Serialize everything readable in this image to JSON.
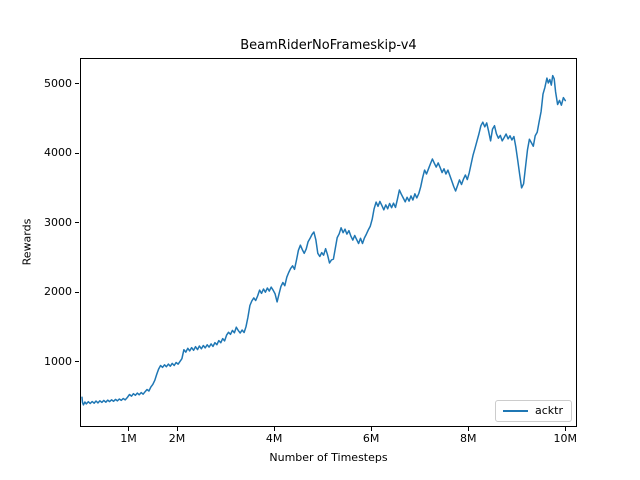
{
  "colors": {
    "line": "#1f77b4",
    "background": "#ffffff",
    "text": "#000000",
    "spine": "#000000",
    "legend_border": "#cccccc"
  },
  "chart_data": {
    "type": "line",
    "title": "BeamRiderNoFrameskip-v4",
    "xlabel": "Number of Timesteps",
    "ylabel": "Rewards",
    "grid": false,
    "xlim_millions": [
      0,
      10.2
    ],
    "ylim": [
      87,
      5367
    ],
    "xticks": [
      {
        "value_millions": 1,
        "label": "1M"
      },
      {
        "value_millions": 2,
        "label": "2M"
      },
      {
        "value_millions": 4,
        "label": "4M"
      },
      {
        "value_millions": 6,
        "label": "6M"
      },
      {
        "value_millions": 8,
        "label": "8M"
      },
      {
        "value_millions": 10,
        "label": "10M"
      }
    ],
    "yticks": [
      {
        "value": 1000,
        "label": "1000"
      },
      {
        "value": 2000,
        "label": "2000"
      },
      {
        "value": 3000,
        "label": "3000"
      },
      {
        "value": 4000,
        "label": "4000"
      },
      {
        "value": 5000,
        "label": "5000"
      }
    ],
    "legend": {
      "position": "lower right",
      "entries": [
        {
          "label": "acktr",
          "color": "#1f77b4"
        }
      ]
    },
    "series": [
      {
        "name": "acktr",
        "color": "#1f77b4",
        "x_unit": "millions_of_timesteps",
        "points": [
          [
            0.02,
            500
          ],
          [
            0.03,
            425
          ],
          [
            0.05,
            390
          ],
          [
            0.08,
            432
          ],
          [
            0.11,
            405
          ],
          [
            0.15,
            436
          ],
          [
            0.19,
            410
          ],
          [
            0.23,
            440
          ],
          [
            0.27,
            415
          ],
          [
            0.31,
            446
          ],
          [
            0.35,
            420
          ],
          [
            0.39,
            450
          ],
          [
            0.43,
            426
          ],
          [
            0.47,
            455
          ],
          [
            0.51,
            430
          ],
          [
            0.55,
            460
          ],
          [
            0.59,
            438
          ],
          [
            0.63,
            464
          ],
          [
            0.67,
            442
          ],
          [
            0.71,
            470
          ],
          [
            0.75,
            448
          ],
          [
            0.79,
            476
          ],
          [
            0.83,
            455
          ],
          [
            0.87,
            482
          ],
          [
            0.91,
            462
          ],
          [
            0.95,
            492
          ],
          [
            1,
            540
          ],
          [
            1.04,
            516
          ],
          [
            1.08,
            552
          ],
          [
            1.12,
            528
          ],
          [
            1.16,
            560
          ],
          [
            1.2,
            536
          ],
          [
            1.24,
            568
          ],
          [
            1.28,
            545
          ],
          [
            1.32,
            580
          ],
          [
            1.36,
            612
          ],
          [
            1.4,
            590
          ],
          [
            1.44,
            650
          ],
          [
            1.48,
            685
          ],
          [
            1.52,
            745
          ],
          [
            1.56,
            830
          ],
          [
            1.6,
            905
          ],
          [
            1.64,
            958
          ],
          [
            1.68,
            930
          ],
          [
            1.72,
            968
          ],
          [
            1.76,
            940
          ],
          [
            1.8,
            978
          ],
          [
            1.84,
            948
          ],
          [
            1.88,
            988
          ],
          [
            1.92,
            958
          ],
          [
            1.96,
            1000
          ],
          [
            2,
            976
          ],
          [
            2.04,
            1016
          ],
          [
            2.08,
            1055
          ],
          [
            2.12,
            1185
          ],
          [
            2.16,
            1150
          ],
          [
            2.2,
            1205
          ],
          [
            2.24,
            1168
          ],
          [
            2.28,
            1215
          ],
          [
            2.32,
            1176
          ],
          [
            2.36,
            1228
          ],
          [
            2.4,
            1186
          ],
          [
            2.44,
            1238
          ],
          [
            2.48,
            1198
          ],
          [
            2.52,
            1245
          ],
          [
            2.56,
            1210
          ],
          [
            2.6,
            1255
          ],
          [
            2.64,
            1222
          ],
          [
            2.68,
            1268
          ],
          [
            2.72,
            1232
          ],
          [
            2.76,
            1285
          ],
          [
            2.8,
            1256
          ],
          [
            2.84,
            1315
          ],
          [
            2.88,
            1286
          ],
          [
            2.92,
            1345
          ],
          [
            2.96,
            1312
          ],
          [
            3,
            1395
          ],
          [
            3.04,
            1435
          ],
          [
            3.08,
            1406
          ],
          [
            3.12,
            1462
          ],
          [
            3.16,
            1428
          ],
          [
            3.2,
            1508
          ],
          [
            3.24,
            1462
          ],
          [
            3.28,
            1425
          ],
          [
            3.32,
            1468
          ],
          [
            3.36,
            1432
          ],
          [
            3.4,
            1515
          ],
          [
            3.44,
            1650
          ],
          [
            3.48,
            1820
          ],
          [
            3.52,
            1885
          ],
          [
            3.56,
            1930
          ],
          [
            3.6,
            1892
          ],
          [
            3.64,
            1958
          ],
          [
            3.68,
            2042
          ],
          [
            3.72,
            1995
          ],
          [
            3.76,
            2058
          ],
          [
            3.8,
            2012
          ],
          [
            3.84,
            2072
          ],
          [
            3.88,
            2028
          ],
          [
            3.92,
            2085
          ],
          [
            3.96,
            2040
          ],
          [
            4,
            1988
          ],
          [
            4.04,
            1872
          ],
          [
            4.08,
            1985
          ],
          [
            4.12,
            2092
          ],
          [
            4.16,
            2152
          ],
          [
            4.2,
            2105
          ],
          [
            4.24,
            2228
          ],
          [
            4.28,
            2295
          ],
          [
            4.32,
            2352
          ],
          [
            4.36,
            2392
          ],
          [
            4.4,
            2342
          ],
          [
            4.44,
            2475
          ],
          [
            4.48,
            2615
          ],
          [
            4.52,
            2688
          ],
          [
            4.56,
            2625
          ],
          [
            4.6,
            2572
          ],
          [
            4.64,
            2632
          ],
          [
            4.68,
            2738
          ],
          [
            4.72,
            2788
          ],
          [
            4.76,
            2842
          ],
          [
            4.8,
            2878
          ],
          [
            4.84,
            2762
          ],
          [
            4.88,
            2572
          ],
          [
            4.92,
            2525
          ],
          [
            4.96,
            2582
          ],
          [
            5,
            2545
          ],
          [
            5.04,
            2638
          ],
          [
            5.08,
            2552
          ],
          [
            5.12,
            2432
          ],
          [
            5.16,
            2475
          ],
          [
            5.2,
            2488
          ],
          [
            5.24,
            2642
          ],
          [
            5.28,
            2798
          ],
          [
            5.32,
            2852
          ],
          [
            5.36,
            2938
          ],
          [
            5.4,
            2868
          ],
          [
            5.44,
            2918
          ],
          [
            5.48,
            2848
          ],
          [
            5.52,
            2898
          ],
          [
            5.56,
            2822
          ],
          [
            5.6,
            2762
          ],
          [
            5.64,
            2828
          ],
          [
            5.68,
            2772
          ],
          [
            5.72,
            2712
          ],
          [
            5.76,
            2788
          ],
          [
            5.8,
            2712
          ],
          [
            5.84,
            2792
          ],
          [
            5.88,
            2848
          ],
          [
            5.92,
            2908
          ],
          [
            5.96,
            2958
          ],
          [
            6,
            3062
          ],
          [
            6.04,
            3212
          ],
          [
            6.08,
            3308
          ],
          [
            6.12,
            3248
          ],
          [
            6.16,
            3318
          ],
          [
            6.2,
            3258
          ],
          [
            6.24,
            3198
          ],
          [
            6.28,
            3268
          ],
          [
            6.32,
            3212
          ],
          [
            6.36,
            3288
          ],
          [
            6.4,
            3228
          ],
          [
            6.44,
            3292
          ],
          [
            6.48,
            3232
          ],
          [
            6.52,
            3348
          ],
          [
            6.56,
            3482
          ],
          [
            6.6,
            3422
          ],
          [
            6.64,
            3368
          ],
          [
            6.68,
            3312
          ],
          [
            6.72,
            3378
          ],
          [
            6.76,
            3322
          ],
          [
            6.8,
            3398
          ],
          [
            6.84,
            3338
          ],
          [
            6.88,
            3428
          ],
          [
            6.92,
            3368
          ],
          [
            6.96,
            3432
          ],
          [
            7,
            3528
          ],
          [
            7.04,
            3658
          ],
          [
            7.08,
            3768
          ],
          [
            7.12,
            3712
          ],
          [
            7.16,
            3788
          ],
          [
            7.2,
            3858
          ],
          [
            7.24,
            3928
          ],
          [
            7.28,
            3868
          ],
          [
            7.32,
            3812
          ],
          [
            7.36,
            3872
          ],
          [
            7.4,
            3808
          ],
          [
            7.44,
            3732
          ],
          [
            7.48,
            3788
          ],
          [
            7.52,
            3712
          ],
          [
            7.56,
            3768
          ],
          [
            7.6,
            3692
          ],
          [
            7.64,
            3612
          ],
          [
            7.68,
            3532
          ],
          [
            7.72,
            3468
          ],
          [
            7.76,
            3548
          ],
          [
            7.8,
            3628
          ],
          [
            7.84,
            3562
          ],
          [
            7.88,
            3638
          ],
          [
            7.92,
            3698
          ],
          [
            7.96,
            3632
          ],
          [
            8,
            3728
          ],
          [
            8.04,
            3862
          ],
          [
            8.08,
            3988
          ],
          [
            8.12,
            4088
          ],
          [
            8.16,
            4188
          ],
          [
            8.2,
            4288
          ],
          [
            8.24,
            4408
          ],
          [
            8.28,
            4458
          ],
          [
            8.32,
            4392
          ],
          [
            8.36,
            4448
          ],
          [
            8.4,
            4328
          ],
          [
            8.44,
            4188
          ],
          [
            8.48,
            4358
          ],
          [
            8.52,
            4408
          ],
          [
            8.56,
            4292
          ],
          [
            8.6,
            4228
          ],
          [
            8.64,
            4268
          ],
          [
            8.68,
            4188
          ],
          [
            8.72,
            4238
          ],
          [
            8.76,
            4288
          ],
          [
            8.8,
            4218
          ],
          [
            8.84,
            4262
          ],
          [
            8.88,
            4202
          ],
          [
            8.92,
            4252
          ],
          [
            8.96,
            4102
          ],
          [
            9,
            3902
          ],
          [
            9.04,
            3702
          ],
          [
            9.08,
            3512
          ],
          [
            9.12,
            3572
          ],
          [
            9.16,
            3812
          ],
          [
            9.2,
            4062
          ],
          [
            9.24,
            4212
          ],
          [
            9.28,
            4162
          ],
          [
            9.32,
            4112
          ],
          [
            9.36,
            4262
          ],
          [
            9.4,
            4312
          ],
          [
            9.44,
            4462
          ],
          [
            9.48,
            4612
          ],
          [
            9.52,
            4862
          ],
          [
            9.56,
            4958
          ],
          [
            9.6,
            5092
          ],
          [
            9.63,
            5022
          ],
          [
            9.66,
            5072
          ],
          [
            9.69,
            4992
          ],
          [
            9.72,
            5128
          ],
          [
            9.75,
            5082
          ],
          [
            9.78,
            4892
          ],
          [
            9.82,
            4712
          ],
          [
            9.86,
            4772
          ],
          [
            9.9,
            4702
          ],
          [
            9.94,
            4812
          ],
          [
            9.98,
            4768
          ]
        ]
      }
    ]
  }
}
